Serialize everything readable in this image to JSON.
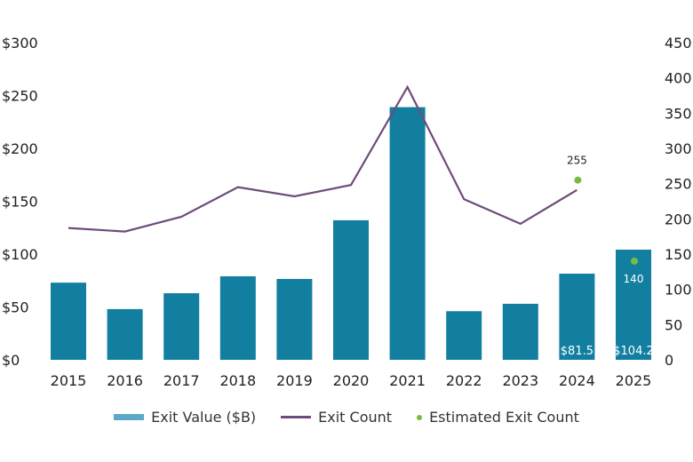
{
  "chart_data": {
    "type": "bar+line",
    "categories": [
      "2015",
      "2016",
      "2017",
      "2018",
      "2019",
      "2020",
      "2021",
      "2022",
      "2023",
      "2024",
      "2025"
    ],
    "series": [
      {
        "name": "Exit Value ($B)",
        "type": "bar",
        "axis": "left",
        "color": "#137FA0",
        "values": [
          73,
          48,
          63,
          79,
          76.5,
          132,
          239,
          46,
          53,
          81.5,
          104.2
        ],
        "data_labels": {
          "9": "$81.5",
          "10": "$104.2"
        }
      },
      {
        "name": "Exit Count",
        "type": "line",
        "axis": "right",
        "color": "#6E4C7A",
        "values": [
          187,
          182,
          203,
          245,
          232,
          248,
          387,
          228,
          193,
          241,
          null
        ]
      },
      {
        "name": "Estimated Exit Count",
        "type": "scatter",
        "axis": "right",
        "color": "#76BC43",
        "values": [
          null,
          null,
          null,
          null,
          null,
          null,
          null,
          null,
          null,
          255,
          140
        ],
        "data_labels": {
          "9": "255",
          "10": "140"
        }
      }
    ],
    "left_axis": {
      "ylim": [
        0,
        300
      ],
      "ticks": [
        "$0",
        "$50",
        "$100",
        "$150",
        "$200",
        "$250",
        "$300"
      ]
    },
    "right_axis": {
      "ylim": [
        0,
        450
      ],
      "ticks": [
        "0",
        "50",
        "100",
        "150",
        "200",
        "250",
        "300",
        "350",
        "400",
        "450"
      ]
    },
    "legend_swatch_color": "#5BA8C8",
    "grid": false,
    "legend_position": "bottom"
  }
}
